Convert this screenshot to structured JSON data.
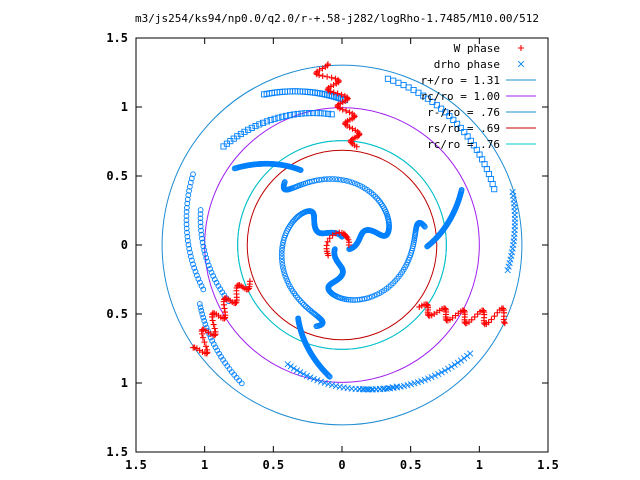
{
  "chart_data": {
    "type": "scatter",
    "title": "m3/js254/ks94/np0.0/q2.0/r-+.58-j282/logRho-1.7485/M10.00/512",
    "xlabel": "",
    "ylabel": "",
    "xlim": [
      -1.5,
      1.5
    ],
    "ylim": [
      -1.5,
      1.5
    ],
    "x_ticks": [
      {
        "value": -1.5,
        "label": "1.5"
      },
      {
        "value": -1.0,
        "label": "1"
      },
      {
        "value": -0.5,
        "label": "0.5"
      },
      {
        "value": 0.0,
        "label": "0"
      },
      {
        "value": 0.5,
        "label": "0.5"
      },
      {
        "value": 1.0,
        "label": "1"
      },
      {
        "value": 1.5,
        "label": "1.5"
      }
    ],
    "y_ticks": [
      {
        "value": 1.5,
        "label": "1.5"
      },
      {
        "value": 1.0,
        "label": "1"
      },
      {
        "value": 0.5,
        "label": "0.5"
      },
      {
        "value": 0.0,
        "label": "0"
      },
      {
        "value": -0.5,
        "label": "0.5"
      },
      {
        "value": -1.0,
        "label": "1"
      },
      {
        "value": -1.5,
        "label": "1.5"
      }
    ],
    "grid": false,
    "legend_position": "top-right",
    "series": [
      {
        "name": "W phase",
        "kind": "points",
        "marker": "plus",
        "color": "#ff0000"
      },
      {
        "name": "drho phase",
        "kind": "points",
        "marker": "cross",
        "color": "#0080ff"
      },
      {
        "name": "r+/ro = 1.31",
        "kind": "circle",
        "radius": 1.31,
        "color": "#1e8cd2"
      },
      {
        "name": "rc/ro = 1.00",
        "kind": "circle",
        "radius": 1.0,
        "color": "#a020f0"
      },
      {
        "name": "r-/ro = .76",
        "kind": "circle",
        "radius": 0.76,
        "color": "#1e8cd2"
      },
      {
        "name": "rs/ro = .69",
        "kind": "circle",
        "radius": 0.69,
        "color": "#c00000"
      },
      {
        "name": "rc/ro = .76",
        "kind": "circle",
        "radius": 0.76,
        "color": "#00c8c8"
      }
    ]
  }
}
